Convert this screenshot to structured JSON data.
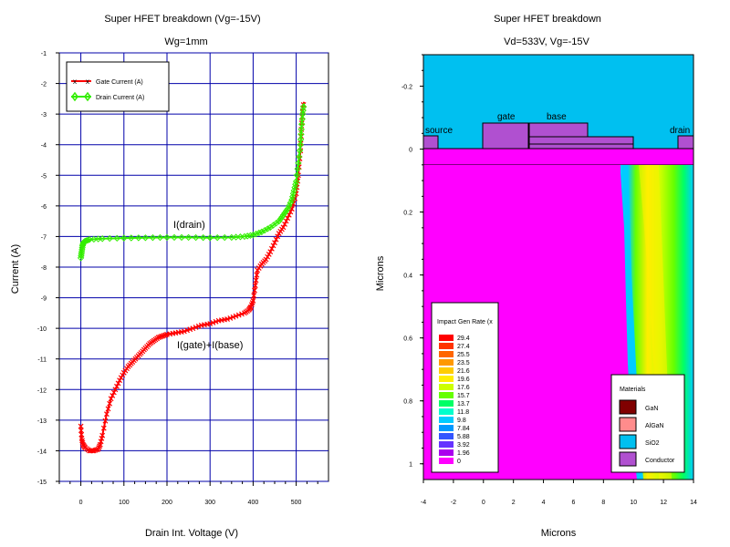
{
  "left_panel": {
    "title": "Super HFET breakdown (Vg=-15V)",
    "subtitle": "Wg=1mm",
    "xlabel": "Drain Int. Voltage (V)",
    "ylabel": "Current (A)",
    "annotation_drain": "I(drain)",
    "annotation_gate": "I(gate)+I(base)"
  },
  "right_panel": {
    "title": "Super HFET breakdown",
    "subtitle": "Vd=533V, Vg=-15V",
    "xlabel": "Microns",
    "ylabel": "Microns",
    "labels": {
      "source": "source",
      "gate": "gate",
      "base": "base",
      "drain": "drain"
    },
    "colorbar_title": "Impact Gen Rate (x",
    "colorbar_values": [
      "29.4",
      "27.4",
      "25.5",
      "23.5",
      "21.6",
      "19.6",
      "17.6",
      "15.7",
      "13.7",
      "11.8",
      "9.8",
      "7.84",
      "5.88",
      "3.92",
      "1.96",
      "0"
    ],
    "colorbar_colors": [
      "#ff0000",
      "#ff3300",
      "#ff6600",
      "#ff9900",
      "#ffcc00",
      "#ffee00",
      "#ccff00",
      "#66ff00",
      "#00ff66",
      "#00ffcc",
      "#00ccff",
      "#0099ff",
      "#3355ff",
      "#6633ff",
      "#aa00ee",
      "#ff00ff"
    ],
    "materials_title": "Materials",
    "materials": [
      {
        "name": "GaN",
        "color": "#800000"
      },
      {
        "name": "AlGaN",
        "color": "#ff8c8c"
      },
      {
        "name": "SiO2",
        "color": "#00c0f0"
      },
      {
        "name": "Conductor",
        "color": "#b050d0"
      }
    ],
    "colors": {
      "substrate": "#ff00ff",
      "oxide": "#00c0f0",
      "conductor": "#b050d0"
    }
  },
  "chart_data": [
    {
      "type": "line",
      "title": "Super HFET breakdown (Vg=-15V)",
      "subtitle": "Wg=1mm",
      "xlabel": "Drain Int. Voltage (V)",
      "ylabel": "Current (A)",
      "x_ticks": [
        0,
        100,
        200,
        300,
        400,
        500
      ],
      "y_ticks": [
        -1,
        -2,
        -3,
        -4,
        -5,
        -6,
        -7,
        -8,
        -9,
        -10,
        -11,
        -12,
        -13,
        -14,
        -15
      ],
      "xlim": [
        -50,
        575
      ],
      "ylim": [
        -15,
        -1
      ],
      "grid": true,
      "legend_position": "top-left",
      "series": [
        {
          "name": "Gate Current (A)",
          "color": "#ff0000",
          "marker": "x",
          "points": [
            [
              0,
              -13.2
            ],
            [
              2,
              -13.6
            ],
            [
              5,
              -13.8
            ],
            [
              10,
              -13.9
            ],
            [
              20,
              -14.0
            ],
            [
              30,
              -14.0
            ],
            [
              40,
              -13.95
            ],
            [
              45,
              -13.8
            ],
            [
              50,
              -13.5
            ],
            [
              60,
              -12.8
            ],
            [
              70,
              -12.3
            ],
            [
              80,
              -12.0
            ],
            [
              90,
              -11.7
            ],
            [
              100,
              -11.45
            ],
            [
              110,
              -11.25
            ],
            [
              120,
              -11.1
            ],
            [
              130,
              -10.95
            ],
            [
              140,
              -10.8
            ],
            [
              150,
              -10.65
            ],
            [
              160,
              -10.5
            ],
            [
              170,
              -10.4
            ],
            [
              180,
              -10.3
            ],
            [
              190,
              -10.25
            ],
            [
              200,
              -10.2
            ],
            [
              220,
              -10.15
            ],
            [
              240,
              -10.1
            ],
            [
              260,
              -10.0
            ],
            [
              280,
              -9.9
            ],
            [
              300,
              -9.85
            ],
            [
              320,
              -9.75
            ],
            [
              340,
              -9.7
            ],
            [
              360,
              -9.6
            ],
            [
              380,
              -9.5
            ],
            [
              390,
              -9.4
            ],
            [
              395,
              -9.3
            ],
            [
              400,
              -9.1
            ],
            [
              405,
              -8.6
            ],
            [
              410,
              -8.1
            ],
            [
              420,
              -7.9
            ],
            [
              430,
              -7.75
            ],
            [
              440,
              -7.5
            ],
            [
              450,
              -7.2
            ],
            [
              460,
              -6.9
            ],
            [
              470,
              -6.7
            ],
            [
              480,
              -6.4
            ],
            [
              490,
              -6.1
            ],
            [
              500,
              -5.6
            ],
            [
              505,
              -5.0
            ],
            [
              510,
              -4.2
            ],
            [
              512,
              -3.5
            ],
            [
              515,
              -2.9
            ],
            [
              518,
              -2.6
            ]
          ]
        },
        {
          "name": "Drain Current (A)",
          "color": "#33ee00",
          "marker": "diamond",
          "points": [
            [
              0,
              -7.7
            ],
            [
              2,
              -7.5
            ],
            [
              4,
              -7.3
            ],
            [
              6,
              -7.2
            ],
            [
              10,
              -7.15
            ],
            [
              20,
              -7.1
            ],
            [
              50,
              -7.07
            ],
            [
              100,
              -7.05
            ],
            [
              150,
              -7.04
            ],
            [
              200,
              -7.03
            ],
            [
              250,
              -7.03
            ],
            [
              300,
              -7.04
            ],
            [
              350,
              -7.03
            ],
            [
              380,
              -7.0
            ],
            [
              400,
              -6.95
            ],
            [
              420,
              -6.85
            ],
            [
              440,
              -6.7
            ],
            [
              460,
              -6.5
            ],
            [
              470,
              -6.3
            ],
            [
              480,
              -6.1
            ],
            [
              490,
              -5.8
            ],
            [
              495,
              -5.5
            ],
            [
              500,
              -5.2
            ],
            [
              505,
              -4.6
            ],
            [
              510,
              -4.0
            ],
            [
              512,
              -3.5
            ],
            [
              515,
              -3.0
            ],
            [
              518,
              -2.65
            ]
          ]
        }
      ]
    },
    {
      "type": "heatmap",
      "title": "Super HFET breakdown",
      "subtitle": "Vd=533V, Vg=-15V",
      "xlabel": "Microns",
      "ylabel": "Microns",
      "x_ticks": [
        -4,
        -2,
        0,
        2,
        4,
        6,
        8,
        10,
        12,
        14
      ],
      "y_ticks": [
        -0.2,
        0,
        0.2,
        0.4,
        0.6,
        0.8,
        1
      ],
      "xlim": [
        -4,
        14
      ],
      "ylim": [
        1.05,
        -0.3
      ],
      "colorbar_range": [
        0,
        29.4
      ]
    }
  ]
}
